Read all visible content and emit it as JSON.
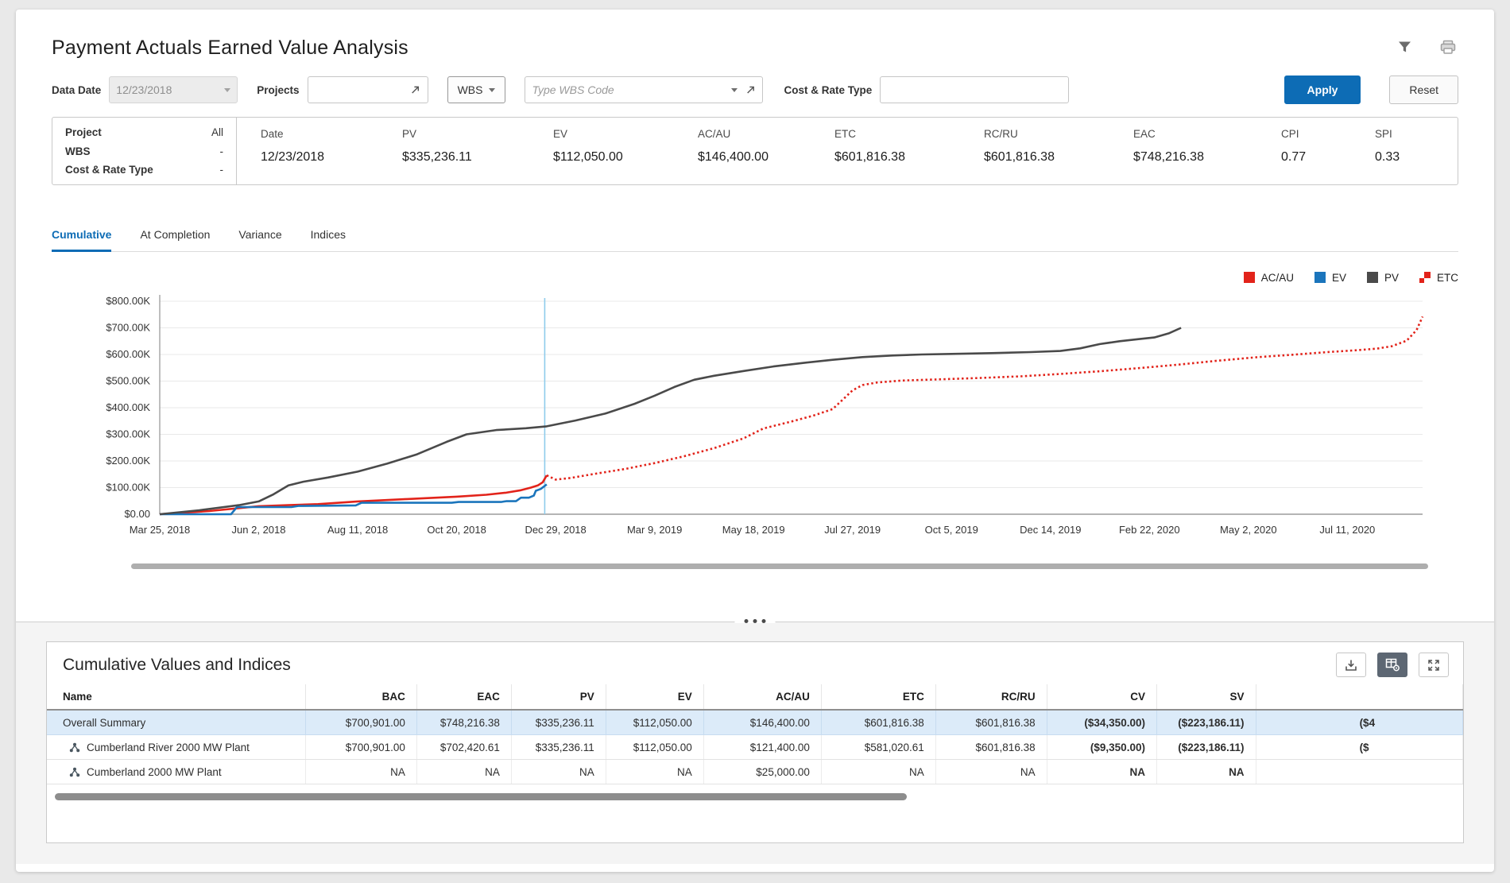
{
  "header": {
    "title": "Payment Actuals Earned Value Analysis",
    "icons": [
      "filter-funnel-icon",
      "printer-icon"
    ]
  },
  "filters": {
    "data_date": {
      "label": "Data Date",
      "value": "12/23/2018"
    },
    "projects": {
      "label": "Projects",
      "value": "",
      "icon": "picker-icon"
    },
    "wbs_button": {
      "label": "WBS"
    },
    "wbs_code": {
      "placeholder": "Type WBS Code",
      "value": "",
      "icons": [
        "caret-down-icon",
        "picker-icon"
      ]
    },
    "cost_rate_type": {
      "label": "Cost & Rate Type",
      "value": ""
    },
    "apply_label": "Apply",
    "reset_label": "Reset"
  },
  "summary": {
    "left": [
      {
        "label": "Project",
        "value": "All"
      },
      {
        "label": "WBS",
        "value": "-"
      },
      {
        "label": "Cost & Rate Type",
        "value": "-"
      }
    ],
    "metrics": [
      {
        "label": "Date",
        "value": "12/23/2018"
      },
      {
        "label": "PV",
        "value": "$335,236.11"
      },
      {
        "label": "EV",
        "value": "$112,050.00"
      },
      {
        "label": "AC/AU",
        "value": "$146,400.00"
      },
      {
        "label": "ETC",
        "value": "$601,816.38"
      },
      {
        "label": "RC/RU",
        "value": "$601,816.38"
      },
      {
        "label": "EAC",
        "value": "$748,216.38"
      },
      {
        "label": "CPI",
        "value": "0.77"
      },
      {
        "label": "SPI",
        "value": "0.33"
      }
    ]
  },
  "tabs": [
    {
      "label": "Cumulative",
      "active": true
    },
    {
      "label": "At Completion",
      "active": false
    },
    {
      "label": "Variance",
      "active": false
    },
    {
      "label": "Indices",
      "active": false
    }
  ],
  "chart_data": {
    "type": "line",
    "title": "",
    "xlabel": "",
    "ylabel": "",
    "units": "points are [time_tick_index, value_in_$_thousands]",
    "ylim_k": [
      0,
      800
    ],
    "y_ticks": [
      "$0.00",
      "$100.00K",
      "$200.00K",
      "$300.00K",
      "$400.00K",
      "$500.00K",
      "$600.00K",
      "$700.00K",
      "$800.00K"
    ],
    "x_axis": {
      "labels": [
        "Mar 25, 2018",
        "Jun 2, 2018",
        "Aug 11, 2018",
        "Oct 20, 2018",
        "Dec 29, 2018",
        "Mar 9, 2019",
        "May 18, 2019",
        "Jul 27, 2019",
        "Oct 5, 2019",
        "Dec 14, 2019",
        "Feb 22, 2020",
        "May 2, 2020",
        "Jul 11, 2020"
      ],
      "max_tick": 12.76
    },
    "grid": true,
    "legend_position": "top-right",
    "data_date_tick": 3.89,
    "data_date_line_color": "#8ecbeb",
    "series": [
      {
        "name": "AC/AU",
        "color": "#e2231a",
        "style": "solid",
        "points": [
          [
            0,
            0
          ],
          [
            0.5,
            12
          ],
          [
            1,
            30
          ],
          [
            1.3,
            34
          ],
          [
            1.6,
            38
          ],
          [
            2,
            48
          ],
          [
            2.5,
            57
          ],
          [
            3,
            66
          ],
          [
            3.3,
            73
          ],
          [
            3.5,
            81
          ],
          [
            3.65,
            90
          ],
          [
            3.75,
            100
          ],
          [
            3.82,
            108
          ],
          [
            3.87,
            120
          ],
          [
            3.91,
            146
          ]
        ]
      },
      {
        "name": "EV",
        "color": "#1b75bc",
        "style": "solid",
        "points": [
          [
            0,
            0
          ],
          [
            0.72,
            0
          ],
          [
            0.78,
            27
          ],
          [
            1.33,
            27
          ],
          [
            1.4,
            31
          ],
          [
            1.98,
            33
          ],
          [
            2.04,
            43
          ],
          [
            2.95,
            43
          ],
          [
            3.02,
            46
          ],
          [
            3.45,
            46
          ],
          [
            3.5,
            49
          ],
          [
            3.6,
            49
          ],
          [
            3.65,
            62
          ],
          [
            3.73,
            62
          ],
          [
            3.78,
            70
          ],
          [
            3.8,
            88
          ],
          [
            3.85,
            95
          ],
          [
            3.91,
            112
          ]
        ]
      },
      {
        "name": "PV",
        "color": "#4a4a4a",
        "style": "solid",
        "points": [
          [
            0,
            0
          ],
          [
            0.4,
            15
          ],
          [
            0.8,
            34
          ],
          [
            1,
            48
          ],
          [
            1.15,
            75
          ],
          [
            1.3,
            108
          ],
          [
            1.45,
            122
          ],
          [
            1.7,
            138
          ],
          [
            2,
            160
          ],
          [
            2.3,
            190
          ],
          [
            2.6,
            225
          ],
          [
            2.9,
            272
          ],
          [
            3.1,
            300
          ],
          [
            3.4,
            316
          ],
          [
            3.7,
            323
          ],
          [
            3.91,
            330
          ],
          [
            4.2,
            352
          ],
          [
            4.5,
            378
          ],
          [
            4.8,
            415
          ],
          [
            5,
            445
          ],
          [
            5.2,
            478
          ],
          [
            5.4,
            505
          ],
          [
            5.6,
            520
          ],
          [
            5.9,
            538
          ],
          [
            6.2,
            555
          ],
          [
            6.5,
            568
          ],
          [
            6.8,
            580
          ],
          [
            7.1,
            590
          ],
          [
            7.4,
            596
          ],
          [
            7.7,
            600
          ],
          [
            8,
            602
          ],
          [
            8.4,
            605
          ],
          [
            8.8,
            609
          ],
          [
            9.1,
            613
          ],
          [
            9.3,
            623
          ],
          [
            9.5,
            639
          ],
          [
            9.7,
            650
          ],
          [
            9.9,
            658
          ],
          [
            10.05,
            664
          ],
          [
            10.2,
            680
          ],
          [
            10.32,
            700
          ]
        ]
      },
      {
        "name": "ETC",
        "color": "#e2231a",
        "style": "dotted",
        "points": [
          [
            3.91,
            146
          ],
          [
            4.0,
            130
          ],
          [
            4.15,
            136
          ],
          [
            4.4,
            152
          ],
          [
            4.7,
            170
          ],
          [
            5,
            192
          ],
          [
            5.3,
            218
          ],
          [
            5.6,
            248
          ],
          [
            5.9,
            285
          ],
          [
            6.1,
            322
          ],
          [
            6.35,
            345
          ],
          [
            6.6,
            370
          ],
          [
            6.8,
            395
          ],
          [
            6.9,
            430
          ],
          [
            7.0,
            465
          ],
          [
            7.1,
            485
          ],
          [
            7.25,
            495
          ],
          [
            7.5,
            502
          ],
          [
            7.9,
            507
          ],
          [
            8.3,
            512
          ],
          [
            8.7,
            518
          ],
          [
            9.1,
            527
          ],
          [
            9.5,
            537
          ],
          [
            9.9,
            549
          ],
          [
            10.3,
            562
          ],
          [
            10.7,
            577
          ],
          [
            11.1,
            590
          ],
          [
            11.45,
            599
          ],
          [
            11.8,
            609
          ],
          [
            12.1,
            616
          ],
          [
            12.3,
            622
          ],
          [
            12.45,
            631
          ],
          [
            12.6,
            652
          ],
          [
            12.7,
            692
          ],
          [
            12.76,
            742
          ]
        ]
      }
    ]
  },
  "table": {
    "title": "Cumulative Values and Indices",
    "toolbar_icons": [
      "download-icon",
      "grid-settings-icon",
      "expand-icon"
    ],
    "columns": [
      {
        "label": "Name",
        "align": "left"
      },
      {
        "label": "BAC",
        "align": "right"
      },
      {
        "label": "EAC",
        "align": "right"
      },
      {
        "label": "PV",
        "align": "right"
      },
      {
        "label": "EV",
        "align": "right"
      },
      {
        "label": "AC/AU",
        "align": "right"
      },
      {
        "label": "ETC",
        "align": "right"
      },
      {
        "label": "RC/RU",
        "align": "right"
      },
      {
        "label": "CV",
        "align": "right",
        "bold": true
      },
      {
        "label": "SV",
        "align": "right",
        "bold": true
      },
      {
        "label": "",
        "align": "left",
        "bold": true,
        "clipped": true
      }
    ],
    "rows": [
      {
        "name": "Overall Summary",
        "icon": false,
        "selected": true,
        "values": [
          "$700,901.00",
          "$748,216.38",
          "$335,236.11",
          "$112,050.00",
          "$146,400.00",
          "$601,816.38",
          "$601,816.38",
          "($34,350.00)",
          "($223,186.11)",
          "($4"
        ]
      },
      {
        "name": "Cumberland River 2000 MW Plant",
        "icon": true,
        "selected": false,
        "values": [
          "$700,901.00",
          "$702,420.61",
          "$335,236.11",
          "$112,050.00",
          "$121,400.00",
          "$581,020.61",
          "$601,816.38",
          "($9,350.00)",
          "($223,186.11)",
          "($"
        ]
      },
      {
        "name": "Cumberland 2000 MW Plant",
        "icon": true,
        "selected": false,
        "values": [
          "NA",
          "NA",
          "NA",
          "NA",
          "$25,000.00",
          "NA",
          "NA",
          "NA",
          "NA",
          ""
        ]
      }
    ]
  }
}
